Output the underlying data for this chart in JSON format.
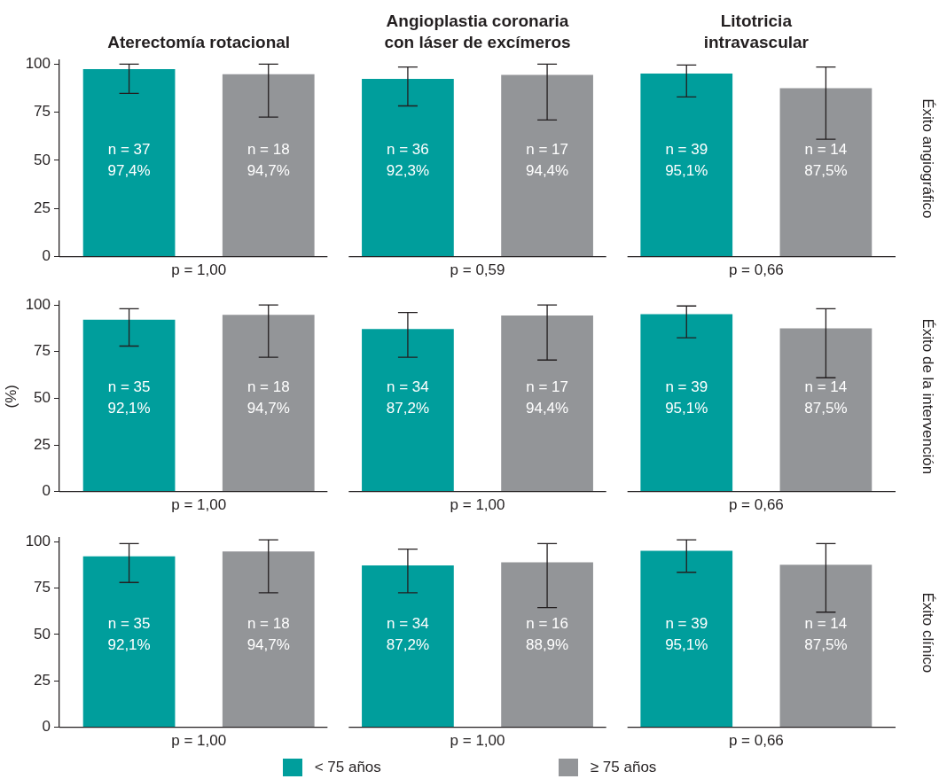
{
  "chart_data": [
    {
      "type": "bar",
      "annotations": [
        "Aterectomía rotacional",
        "Angioplastia coronaria\ncon láser de excímeros",
        "Litotricia\nintravascular"
      ],
      "y2label": "Éxito angiográfico",
      "categories": [
        "p = 1,00",
        "p = 0,59",
        "p = 0,66"
      ],
      "series": [
        {
          "color": "#009e9c",
          "values": [
            97.4,
            92.3,
            95.1
          ],
          "errors": [
            [
              84.8,
              100
            ],
            [
              78.3,
              98.5
            ],
            [
              83,
              99.5
            ]
          ],
          "value_labels": [
            "n = 37\n97,4%",
            "n = 36\n92,3%",
            "n = 39\n95,1%"
          ]
        },
        {
          "color": "#939598",
          "values": [
            94.7,
            94.4,
            87.5
          ],
          "errors": [
            [
              72.5,
              100
            ],
            [
              71,
              100
            ],
            [
              61,
              98.5
            ]
          ],
          "value_labels": [
            "n = 18\n94,7%",
            "n = 17\n94,4%",
            "n = 14\n87,5%"
          ]
        }
      ],
      "ylim": [
        0,
        102
      ],
      "yticks": [
        0,
        25,
        50,
        75,
        100
      ]
    },
    {
      "type": "bar",
      "ylabel": "(%)",
      "y2label": "Éxito de la intervención",
      "categories": [
        "p = 1,00",
        "p = 1,00",
        "p = 0,66"
      ],
      "series": [
        {
          "color": "#009e9c",
          "values": [
            92.1,
            87.2,
            95.1
          ],
          "errors": [
            [
              78,
              98
            ],
            [
              72,
              96
            ],
            [
              82.5,
              99.5
            ]
          ],
          "value_labels": [
            "n = 35\n92,1%",
            "n = 34\n87,2%",
            "n = 39\n95,1%"
          ]
        },
        {
          "color": "#939598",
          "values": [
            94.7,
            94.4,
            87.5
          ],
          "errors": [
            [
              72,
              100
            ],
            [
              70.5,
              100
            ],
            [
              61,
              98
            ]
          ],
          "value_labels": [
            "n = 18\n94,7%",
            "n = 17\n94,4%",
            "n = 14\n87,5%"
          ]
        }
      ],
      "ylim": [
        0,
        102
      ],
      "yticks": [
        0,
        25,
        50,
        75,
        100
      ]
    },
    {
      "type": "bar",
      "legend": "bottom",
      "y2label": "Éxito clínico",
      "categories": [
        "p = 1,00",
        "p = 1,00",
        "p = 0,66"
      ],
      "series": [
        {
          "name": "< 75 años",
          "color": "#009e9c",
          "values": [
            92.1,
            87.2,
            95.1
          ],
          "errors": [
            [
              78,
              99
            ],
            [
              72.5,
              96
            ],
            [
              83.5,
              101
            ]
          ],
          "value_labels": [
            "n = 35\n92,1%",
            "n = 34\n87,2%",
            "n = 39\n95,1%"
          ]
        },
        {
          "name": "≥ 75 años",
          "color": "#939598",
          "values": [
            94.7,
            88.9,
            87.5
          ],
          "errors": [
            [
              72.5,
              101
            ],
            [
              64.5,
              99
            ],
            [
              62,
              99
            ]
          ],
          "value_labels": [
            "n = 18\n94,7%",
            "n = 16\n88,9%",
            "n = 14\n87,5%"
          ]
        }
      ],
      "ylim": [
        0,
        102
      ],
      "yticks": [
        0,
        25,
        50,
        75,
        100
      ]
    }
  ]
}
